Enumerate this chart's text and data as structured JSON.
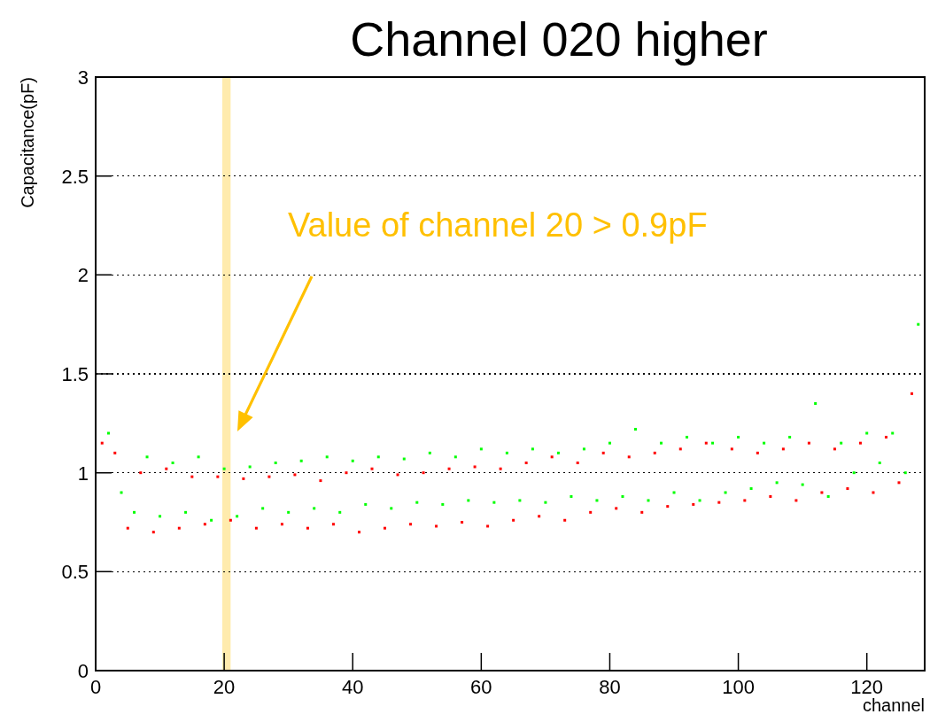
{
  "chart_data": {
    "type": "scatter",
    "title": "Channel 020 higher",
    "xlabel": "channel",
    "ylabel": "Capacitance(pF)",
    "xlim": [
      0,
      129
    ],
    "xticks": [
      0,
      20,
      40,
      60,
      80,
      100,
      120
    ],
    "ylim": [
      0,
      3
    ],
    "yticks": [
      0,
      0.5,
      1,
      1.5,
      2,
      2.5,
      3
    ],
    "grid": "y",
    "marker": "square",
    "bands": [
      {
        "axis": "x",
        "from": 19.7,
        "to": 21,
        "color": "#ffe699"
      }
    ],
    "annotations": [
      "Value of channel 20 > 0.9pF"
    ],
    "series": [
      {
        "color": "#ff0000",
        "x": [
          1,
          3,
          5,
          7,
          9,
          11,
          13,
          15,
          17,
          19,
          21,
          23,
          25,
          27,
          29,
          31,
          33,
          35,
          37,
          39,
          41,
          43,
          45,
          47,
          49,
          51,
          53,
          55,
          57,
          59,
          61,
          63,
          65,
          67,
          69,
          71,
          73,
          75,
          77,
          79,
          81,
          83,
          85,
          87,
          89,
          91,
          93,
          95,
          97,
          99,
          101,
          103,
          105,
          107,
          109,
          111,
          113,
          115,
          117,
          119,
          121,
          123,
          125,
          127
        ],
        "values": [
          1.15,
          1.1,
          0.72,
          1.0,
          0.7,
          1.02,
          0.72,
          0.98,
          0.74,
          0.98,
          0.76,
          0.97,
          0.72,
          0.98,
          0.74,
          0.99,
          0.72,
          0.96,
          0.74,
          1.0,
          0.7,
          1.02,
          0.72,
          0.99,
          0.74,
          1.0,
          0.73,
          1.02,
          0.75,
          1.03,
          0.73,
          1.02,
          0.76,
          1.05,
          0.78,
          1.08,
          0.76,
          1.05,
          0.8,
          1.1,
          0.82,
          1.08,
          0.8,
          1.1,
          0.83,
          1.12,
          0.84,
          1.15,
          0.85,
          1.12,
          0.86,
          1.1,
          0.88,
          1.12,
          0.86,
          1.15,
          0.9,
          1.12,
          0.92,
          1.15,
          0.9,
          1.18,
          0.95,
          1.4
        ]
      },
      {
        "color": "#00ff00",
        "x": [
          2,
          4,
          6,
          8,
          10,
          12,
          14,
          16,
          18,
          20,
          22,
          24,
          26,
          28,
          30,
          32,
          34,
          36,
          38,
          40,
          42,
          44,
          46,
          48,
          50,
          52,
          54,
          56,
          58,
          60,
          62,
          64,
          66,
          68,
          70,
          72,
          74,
          76,
          78,
          80,
          82,
          84,
          86,
          88,
          90,
          92,
          94,
          96,
          98,
          100,
          102,
          104,
          106,
          108,
          110,
          112,
          114,
          116,
          118,
          120,
          122,
          124,
          126,
          128
        ],
        "values": [
          1.2,
          0.9,
          0.8,
          1.08,
          0.78,
          1.05,
          0.8,
          1.08,
          0.76,
          1.02,
          0.78,
          1.03,
          0.82,
          1.05,
          0.8,
          1.06,
          0.82,
          1.08,
          0.8,
          1.06,
          0.84,
          1.08,
          0.82,
          1.07,
          0.85,
          1.1,
          0.84,
          1.08,
          0.86,
          1.12,
          0.85,
          1.1,
          0.86,
          1.12,
          0.85,
          1.1,
          0.88,
          1.12,
          0.86,
          1.15,
          0.88,
          1.22,
          0.86,
          1.15,
          0.9,
          1.18,
          0.86,
          1.15,
          0.9,
          1.18,
          0.92,
          1.15,
          0.95,
          1.18,
          0.94,
          1.35,
          0.88,
          1.15,
          1.0,
          1.2,
          1.05,
          1.2,
          1.0,
          1.75
        ]
      }
    ]
  }
}
